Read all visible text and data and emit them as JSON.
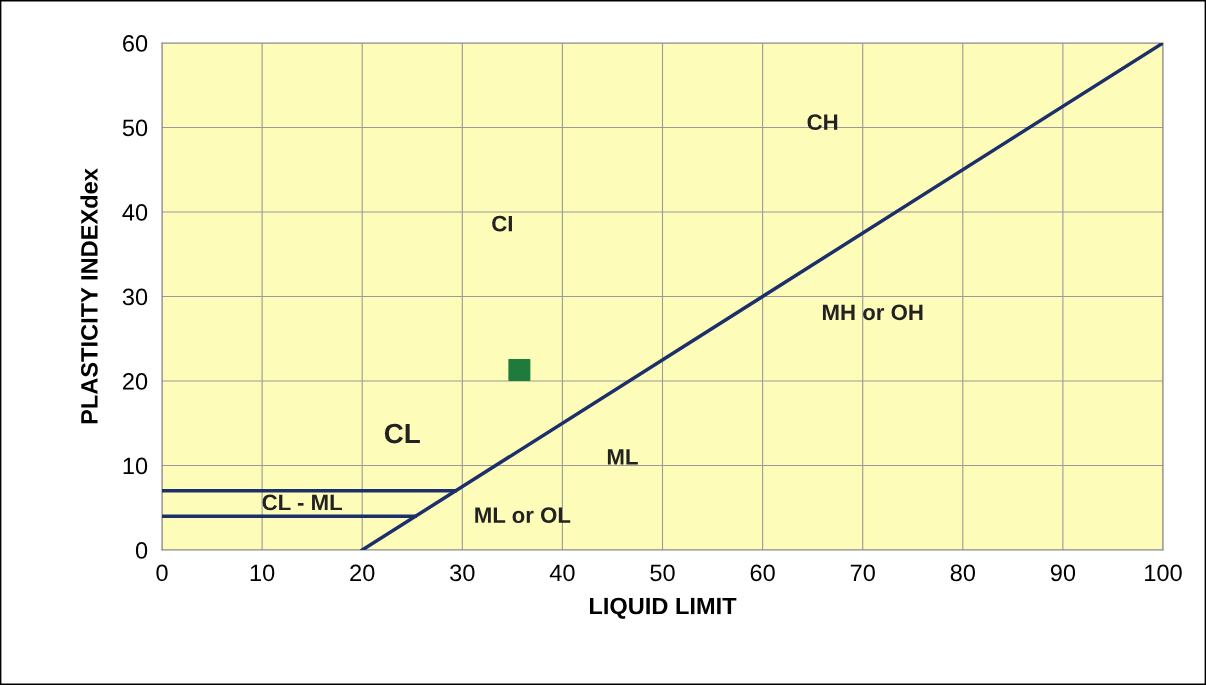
{
  "chart_data": {
    "type": "line",
    "xlabel": "LIQUID LIMIT",
    "ylabel": "PLASTICITY INDEXdex",
    "xlim": [
      0,
      100
    ],
    "ylim": [
      0,
      60
    ],
    "xticks": [
      0,
      10,
      20,
      30,
      40,
      50,
      60,
      70,
      80,
      90,
      100
    ],
    "yticks": [
      0,
      10,
      20,
      30,
      40,
      50,
      60
    ],
    "grid": true,
    "marker": "none",
    "line_style": "solid",
    "series": [
      {
        "color": "#1c2f6b",
        "x": [
          20,
          100
        ],
        "values": [
          0,
          60
        ]
      },
      {
        "color": "#1c2f6b",
        "x": [
          0,
          29.3
        ],
        "values": [
          7,
          7
        ]
      },
      {
        "color": "#1c2f6b",
        "x": [
          0,
          25.3
        ],
        "values": [
          4,
          4
        ]
      },
      {
        "type": "scatter",
        "color": "#1e7b3c",
        "marker": "square",
        "x": [
          35.7
        ],
        "values": [
          21.3
        ]
      }
    ],
    "annotations": [
      "CH",
      "CI",
      "MH or OH",
      "CL",
      "ML",
      "CL - ML",
      "ML or OL"
    ]
  }
}
